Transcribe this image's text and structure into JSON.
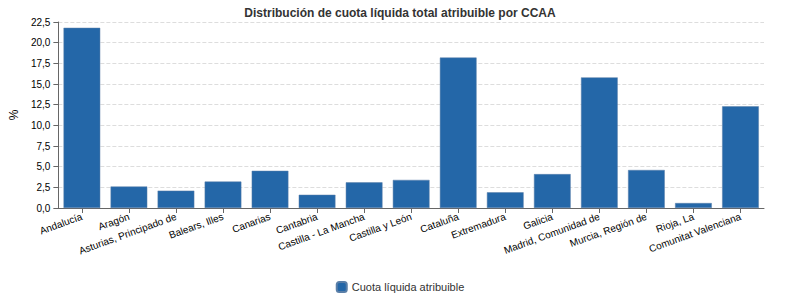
{
  "chart_data": {
    "type": "bar",
    "title": "Distribución de cuota líquida total atribuible por CCAA",
    "y_label": "%",
    "categories": [
      "Andalucía",
      "Aragón",
      "Asturias, Principado de",
      "Balears, Illes",
      "Canarias",
      "Cantabria",
      "Castilla - La Mancha",
      "Castilla y León",
      "Cataluña",
      "Extremadura",
      "Galicia",
      "Madrid, Comunidad de",
      "Murcia, Región de",
      "Rioja, La",
      "Comunitat Valenciana"
    ],
    "series": [
      {
        "name": "Cuota líquida atribuible",
        "color": "#2467a8",
        "values": [
          21.8,
          2.6,
          2.1,
          3.2,
          4.5,
          1.6,
          3.1,
          3.4,
          18.2,
          1.9,
          4.1,
          15.8,
          4.6,
          0.6,
          12.3
        ]
      }
    ],
    "ylim": [
      0,
      22.5
    ],
    "yticks": [
      {
        "value": 0,
        "label": "0,0"
      },
      {
        "value": 2.5,
        "label": "2,5"
      },
      {
        "value": 5,
        "label": "5,0"
      },
      {
        "value": 7.5,
        "label": "7,5"
      },
      {
        "value": 10,
        "label": "10,0"
      },
      {
        "value": 12.5,
        "label": "12,5"
      },
      {
        "value": 15,
        "label": "15,0"
      },
      {
        "value": 17.5,
        "label": "17,5"
      },
      {
        "value": 20,
        "label": "20,0"
      },
      {
        "value": 22.5,
        "label": "22,5"
      }
    ],
    "grid": true,
    "legend": "bottom"
  }
}
